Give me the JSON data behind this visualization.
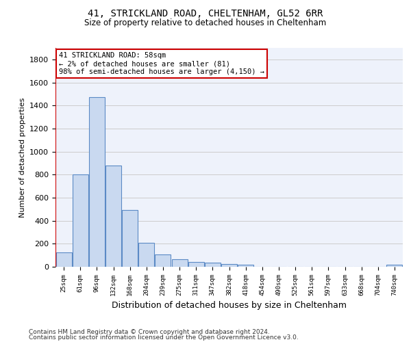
{
  "title1": "41, STRICKLAND ROAD, CHELTENHAM, GL52 6RR",
  "title2": "Size of property relative to detached houses in Cheltenham",
  "xlabel": "Distribution of detached houses by size in Cheltenham",
  "ylabel": "Number of detached properties",
  "footer1": "Contains HM Land Registry data © Crown copyright and database right 2024.",
  "footer2": "Contains public sector information licensed under the Open Government Licence v3.0.",
  "bar_labels": [
    "25sqm",
    "61sqm",
    "96sqm",
    "132sqm",
    "168sqm",
    "204sqm",
    "239sqm",
    "275sqm",
    "311sqm",
    "347sqm",
    "382sqm",
    "418sqm",
    "454sqm",
    "490sqm",
    "525sqm",
    "561sqm",
    "597sqm",
    "633sqm",
    "668sqm",
    "704sqm",
    "740sqm"
  ],
  "bar_values": [
    125,
    800,
    1475,
    880,
    490,
    205,
    105,
    65,
    40,
    35,
    25,
    20,
    0,
    0,
    0,
    0,
    0,
    0,
    0,
    0,
    20
  ],
  "bar_color": "#c9d9f0",
  "bar_edge_color": "#5b8ac5",
  "ylim": [
    0,
    1900
  ],
  "yticks": [
    0,
    200,
    400,
    600,
    800,
    1000,
    1200,
    1400,
    1600,
    1800
  ],
  "red_line_x": -0.5,
  "annotation_title": "41 STRICKLAND ROAD: 58sqm",
  "annotation_line1": "← 2% of detached houses are smaller (81)",
  "annotation_line2": "98% of semi-detached houses are larger (4,150) →",
  "annotation_box_color": "#ffffff",
  "annotation_border_color": "#cc0000",
  "grid_color": "#cccccc",
  "background_color": "#eef2fb"
}
